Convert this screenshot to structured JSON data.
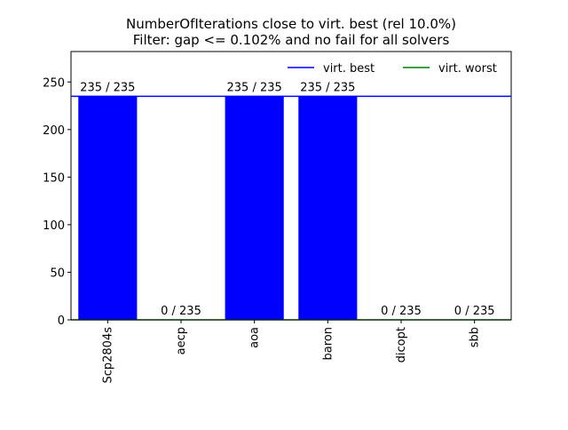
{
  "chart_data": {
    "type": "bar",
    "title": "NumberOfIterations close to virt. best (rel 10.0%)",
    "subtitle": "Filter: gap <= 0.102% and no fail for all solvers",
    "xlabel": "",
    "ylabel": "",
    "ylim": [
      0,
      282
    ],
    "yticks": [
      "0",
      "50",
      "100",
      "150",
      "200",
      "250"
    ],
    "grid": false,
    "categories": [
      "Scp2804s",
      "aecp",
      "aoa",
      "baron",
      "dicopt",
      "sbb"
    ],
    "values": [
      235,
      0,
      235,
      235,
      0,
      0
    ],
    "data_labels": [
      "235 / 235",
      "0 / 235",
      "235 / 235",
      "235 / 235",
      "0 / 235",
      "0 / 235"
    ],
    "bar_color": "#0000ff",
    "reference_lines": [
      {
        "name": "virt. best",
        "value": 235,
        "color": "#0000ff"
      },
      {
        "name": "virt. worst",
        "value": 0,
        "color": "#008000"
      }
    ],
    "legend_position": "top-right"
  }
}
